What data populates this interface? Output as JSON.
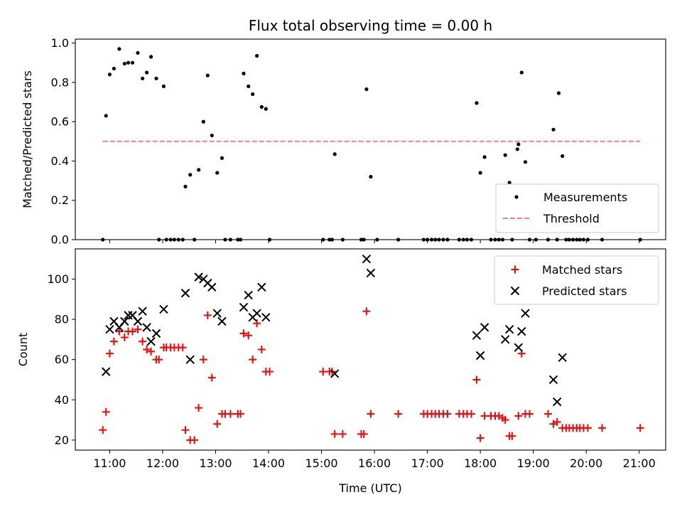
{
  "chart_data": [
    {
      "type": "scatter",
      "title": "Flux total observing time = 0.00 h",
      "ylabel": "Matched/Predicted stars",
      "xlabel": "",
      "xlim": [
        10.35,
        21.5
      ],
      "ylim": [
        0,
        1.02
      ],
      "yticks": [
        0.0,
        0.2,
        0.4,
        0.6,
        0.8,
        1.0
      ],
      "ytick_labels": [
        "0.0",
        "0.2",
        "0.4",
        "0.6",
        "0.8",
        "1.0"
      ],
      "legend_position": "lower-right",
      "series": [
        {
          "name": "Measurements",
          "marker": "dot",
          "color": "#000000",
          "points": [
            [
              10.87,
              0.0
            ],
            [
              10.93,
              0.63
            ],
            [
              11.0,
              0.84
            ],
            [
              11.08,
              0.87
            ],
            [
              11.18,
              0.97
            ],
            [
              11.28,
              0.895
            ],
            [
              11.35,
              0.9
            ],
            [
              11.43,
              0.9
            ],
            [
              11.53,
              0.95
            ],
            [
              11.62,
              0.82
            ],
            [
              11.7,
              0.85
            ],
            [
              11.78,
              0.93
            ],
            [
              11.88,
              0.82
            ],
            [
              11.93,
              0.0
            ],
            [
              12.02,
              0.78
            ],
            [
              12.07,
              0.0
            ],
            [
              12.15,
              0.0
            ],
            [
              12.22,
              0.0
            ],
            [
              12.3,
              0.0
            ],
            [
              12.38,
              0.0
            ],
            [
              12.43,
              0.27
            ],
            [
              12.52,
              0.33
            ],
            [
              12.6,
              0.0
            ],
            [
              12.68,
              0.355
            ],
            [
              12.77,
              0.6
            ],
            [
              12.85,
              0.835
            ],
            [
              12.93,
              0.53
            ],
            [
              13.03,
              0.34
            ],
            [
              13.12,
              0.415
            ],
            [
              13.18,
              0.0
            ],
            [
              13.28,
              0.0
            ],
            [
              13.42,
              0.0
            ],
            [
              13.47,
              0.0
            ],
            [
              13.53,
              0.845
            ],
            [
              13.62,
              0.78
            ],
            [
              13.7,
              0.74
            ],
            [
              13.78,
              0.935
            ],
            [
              13.87,
              0.675
            ],
            [
              13.95,
              0.665
            ],
            [
              14.02,
              0.0
            ],
            [
              15.03,
              0.0
            ],
            [
              15.15,
              0.0
            ],
            [
              15.2,
              0.0
            ],
            [
              15.25,
              0.435
            ],
            [
              15.4,
              0.0
            ],
            [
              15.75,
              0.0
            ],
            [
              15.8,
              0.0
            ],
            [
              15.85,
              0.765
            ],
            [
              15.93,
              0.32
            ],
            [
              16.05,
              0.0
            ],
            [
              16.45,
              0.0
            ],
            [
              16.93,
              0.0
            ],
            [
              17.0,
              0.0
            ],
            [
              17.08,
              0.0
            ],
            [
              17.15,
              0.0
            ],
            [
              17.22,
              0.0
            ],
            [
              17.3,
              0.0
            ],
            [
              17.38,
              0.0
            ],
            [
              17.6,
              0.0
            ],
            [
              17.68,
              0.0
            ],
            [
              17.75,
              0.0
            ],
            [
              17.83,
              0.0
            ],
            [
              17.93,
              0.695
            ],
            [
              18.0,
              0.34
            ],
            [
              18.08,
              0.42
            ],
            [
              18.2,
              0.0
            ],
            [
              18.28,
              0.0
            ],
            [
              18.35,
              0.0
            ],
            [
              18.42,
              0.0
            ],
            [
              18.47,
              0.43
            ],
            [
              18.55,
              0.29
            ],
            [
              18.6,
              0.0
            ],
            [
              18.7,
              0.46
            ],
            [
              18.72,
              0.485
            ],
            [
              18.78,
              0.85
            ],
            [
              18.85,
              0.395
            ],
            [
              18.93,
              0.0
            ],
            [
              19.05,
              0.0
            ],
            [
              19.28,
              0.0
            ],
            [
              19.38,
              0.56
            ],
            [
              19.45,
              0.0
            ],
            [
              19.48,
              0.745
            ],
            [
              19.55,
              0.425
            ],
            [
              19.62,
              0.0
            ],
            [
              19.68,
              0.0
            ],
            [
              19.75,
              0.0
            ],
            [
              19.82,
              0.0
            ],
            [
              19.88,
              0.0
            ],
            [
              19.95,
              0.0
            ],
            [
              20.03,
              0.0
            ],
            [
              20.3,
              0.0
            ],
            [
              21.02,
              0.0
            ]
          ]
        },
        {
          "name": "Threshold",
          "style": "dashed",
          "color": "#ff7f7f",
          "points": [
            [
              10.87,
              0.5
            ],
            [
              21.02,
              0.5
            ]
          ]
        }
      ]
    },
    {
      "type": "scatter",
      "title": "",
      "ylabel": "Count",
      "xlabel": "Time (UTC)",
      "xlim": [
        10.35,
        21.5
      ],
      "ylim": [
        15,
        115
      ],
      "yticks": [
        20,
        40,
        60,
        80,
        100
      ],
      "ytick_labels": [
        "20",
        "40",
        "60",
        "80",
        "100"
      ],
      "xticks": [
        11,
        12,
        13,
        14,
        15,
        16,
        17,
        18,
        19,
        20,
        21
      ],
      "xtick_labels": [
        "11:00",
        "12:00",
        "13:00",
        "14:00",
        "15:00",
        "16:00",
        "17:00",
        "18:00",
        "19:00",
        "20:00",
        "21:00"
      ],
      "legend_position": "upper-right",
      "series": [
        {
          "name": "Matched stars",
          "marker": "plus",
          "color": "#ff0000",
          "points": [
            [
              10.87,
              25
            ],
            [
              10.93,
              34
            ],
            [
              11.0,
              63
            ],
            [
              11.08,
              69
            ],
            [
              11.18,
              74
            ],
            [
              11.28,
              71
            ],
            [
              11.35,
              74
            ],
            [
              11.43,
              74
            ],
            [
              11.53,
              75
            ],
            [
              11.62,
              69
            ],
            [
              11.7,
              65
            ],
            [
              11.78,
              64
            ],
            [
              11.88,
              60
            ],
            [
              11.93,
              60
            ],
            [
              12.02,
              66
            ],
            [
              12.07,
              66
            ],
            [
              12.15,
              66
            ],
            [
              12.22,
              66
            ],
            [
              12.3,
              66
            ],
            [
              12.38,
              66
            ],
            [
              12.43,
              25
            ],
            [
              12.52,
              20
            ],
            [
              12.6,
              20
            ],
            [
              12.68,
              36
            ],
            [
              12.77,
              60
            ],
            [
              12.85,
              82
            ],
            [
              12.93,
              51
            ],
            [
              13.03,
              28
            ],
            [
              13.12,
              33
            ],
            [
              13.18,
              33
            ],
            [
              13.28,
              33
            ],
            [
              13.42,
              33
            ],
            [
              13.47,
              33
            ],
            [
              13.53,
              73
            ],
            [
              13.62,
              72
            ],
            [
              13.7,
              60
            ],
            [
              13.78,
              78
            ],
            [
              13.87,
              65
            ],
            [
              13.95,
              54
            ],
            [
              14.02,
              54
            ],
            [
              15.03,
              54
            ],
            [
              15.15,
              54
            ],
            [
              15.2,
              54
            ],
            [
              15.25,
              23
            ],
            [
              15.4,
              23
            ],
            [
              15.75,
              23
            ],
            [
              15.8,
              23
            ],
            [
              15.85,
              84
            ],
            [
              15.93,
              33
            ],
            [
              16.45,
              33
            ],
            [
              16.93,
              33
            ],
            [
              17.0,
              33
            ],
            [
              17.08,
              33
            ],
            [
              17.15,
              33
            ],
            [
              17.22,
              33
            ],
            [
              17.3,
              33
            ],
            [
              17.38,
              33
            ],
            [
              17.6,
              33
            ],
            [
              17.68,
              33
            ],
            [
              17.75,
              33
            ],
            [
              17.83,
              33
            ],
            [
              17.93,
              50
            ],
            [
              18.0,
              21
            ],
            [
              18.08,
              32
            ],
            [
              18.2,
              32
            ],
            [
              18.28,
              32
            ],
            [
              18.35,
              32
            ],
            [
              18.42,
              31
            ],
            [
              18.47,
              30
            ],
            [
              18.55,
              22
            ],
            [
              18.6,
              22
            ],
            [
              18.72,
              32
            ],
            [
              18.78,
              63
            ],
            [
              18.85,
              33
            ],
            [
              18.93,
              33
            ],
            [
              19.28,
              33
            ],
            [
              19.38,
              28
            ],
            [
              19.45,
              29
            ],
            [
              19.55,
              26
            ],
            [
              19.62,
              26
            ],
            [
              19.68,
              26
            ],
            [
              19.75,
              26
            ],
            [
              19.82,
              26
            ],
            [
              19.88,
              26
            ],
            [
              19.95,
              26
            ],
            [
              20.03,
              26
            ],
            [
              20.3,
              26
            ],
            [
              21.02,
              26
            ]
          ]
        },
        {
          "name": "Predicted stars",
          "marker": "x",
          "color": "#000000",
          "points": [
            [
              10.93,
              54
            ],
            [
              11.0,
              75
            ],
            [
              11.08,
              79
            ],
            [
              11.18,
              76
            ],
            [
              11.28,
              79
            ],
            [
              11.35,
              82
            ],
            [
              11.43,
              82
            ],
            [
              11.53,
              79
            ],
            [
              11.62,
              84
            ],
            [
              11.7,
              76
            ],
            [
              11.78,
              69
            ],
            [
              11.88,
              73
            ],
            [
              12.02,
              85
            ],
            [
              12.43,
              93
            ],
            [
              12.52,
              60
            ],
            [
              12.68,
              101
            ],
            [
              12.77,
              100
            ],
            [
              12.85,
              98
            ],
            [
              12.93,
              96
            ],
            [
              13.03,
              83
            ],
            [
              13.12,
              79
            ],
            [
              13.53,
              86
            ],
            [
              13.62,
              92
            ],
            [
              13.7,
              81
            ],
            [
              13.78,
              83
            ],
            [
              13.87,
              96
            ],
            [
              13.95,
              81
            ],
            [
              15.25,
              53
            ],
            [
              15.85,
              110
            ],
            [
              15.93,
              103
            ],
            [
              17.93,
              72
            ],
            [
              18.0,
              62
            ],
            [
              18.08,
              76
            ],
            [
              18.47,
              70
            ],
            [
              18.55,
              75
            ],
            [
              18.72,
              66
            ],
            [
              18.78,
              74
            ],
            [
              18.85,
              83
            ],
            [
              19.38,
              50
            ],
            [
              19.45,
              39
            ],
            [
              19.55,
              61
            ]
          ]
        }
      ]
    }
  ]
}
